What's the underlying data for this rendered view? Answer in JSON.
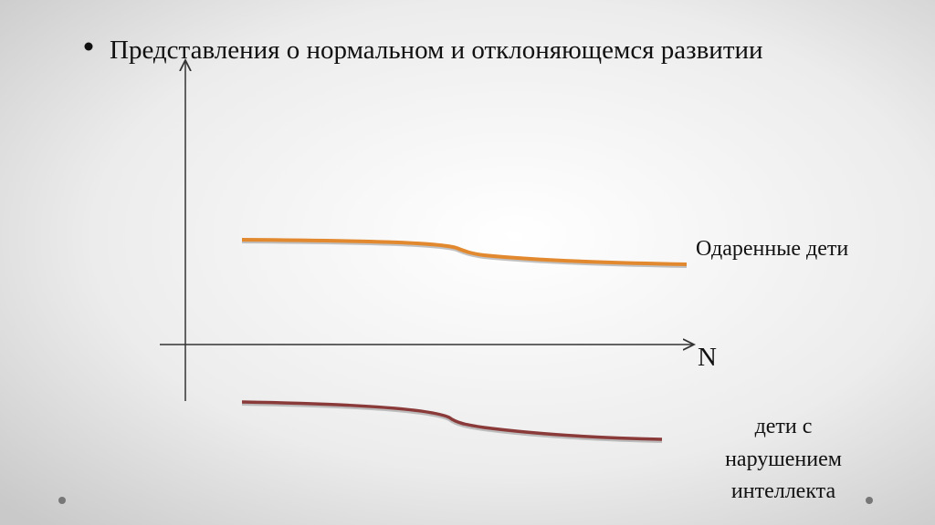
{
  "header": {
    "title": "Представления о нормальном и отклоняющемся развитии"
  },
  "labels": {
    "gifted": "Одаренные дети",
    "norm": "N",
    "impaired": [
      "дети с",
      "нарушением",
      "интеллекта"
    ]
  }
}
